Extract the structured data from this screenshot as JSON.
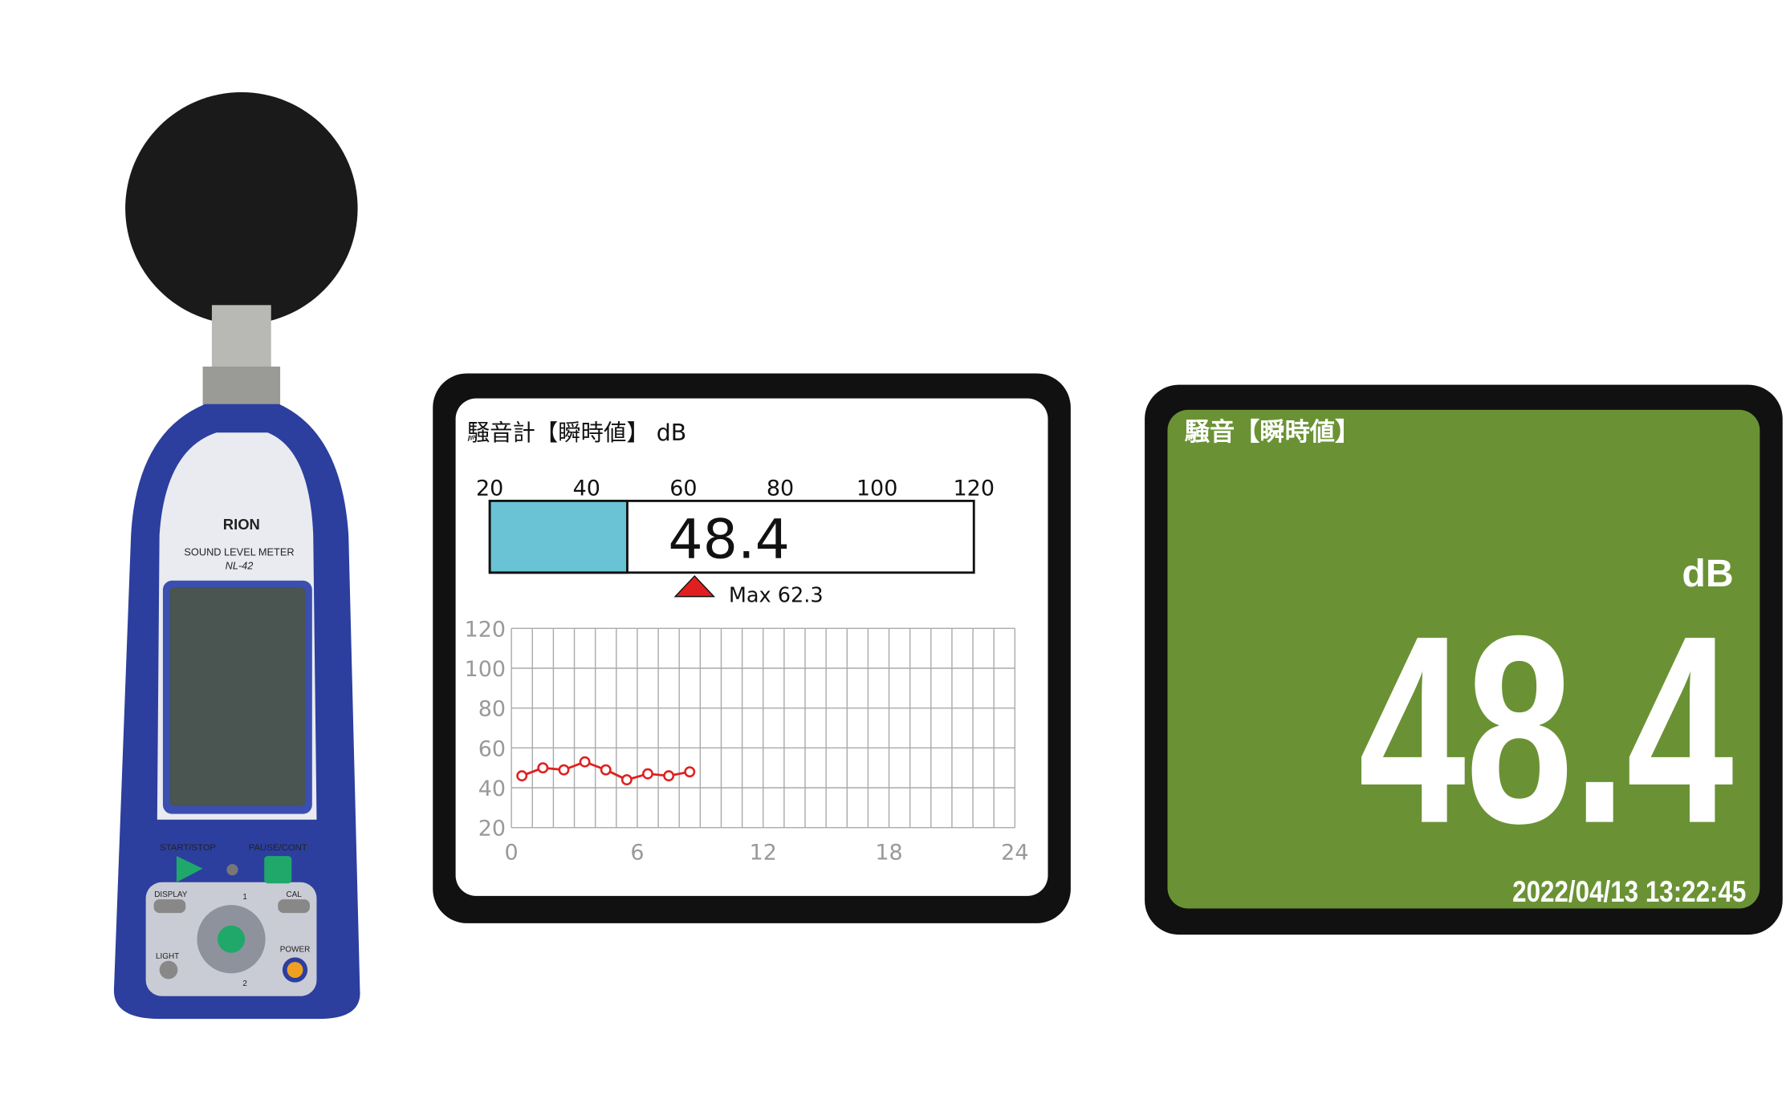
{
  "device": {
    "brand": "RION",
    "product": "SOUND LEVEL METER",
    "model": "NL-42",
    "buttons": {
      "start": "START/STOP",
      "pause": "PAUSE/CONT",
      "display": "DISPLAY",
      "cal": "CAL",
      "light": "LIGHT",
      "power": "POWER",
      "up": "1",
      "down": "2"
    }
  },
  "chart_data": [
    {
      "type": "gauge",
      "title": "騒音計【瞬時値】 dB",
      "xlim": [
        20,
        120
      ],
      "xticks": [
        20,
        40,
        60,
        80,
        100,
        120
      ],
      "values": [
        48.4
      ],
      "color": "#6ac3d5",
      "annotations": [
        {
          "text": "Max 62.3",
          "value": 62.3,
          "color": "#e02020"
        }
      ]
    },
    {
      "type": "line",
      "xlim": [
        0,
        24
      ],
      "xticks": [
        0,
        6,
        12,
        18,
        24
      ],
      "ylim": [
        20,
        120
      ],
      "yticks": [
        20,
        40,
        60,
        80,
        100,
        120
      ],
      "grid": true,
      "x_grid_step": 1,
      "series": [
        {
          "color": "#e02020",
          "x": [
            0.5,
            1.5,
            2.5,
            3.5,
            4.5,
            5.5,
            6.5,
            7.5,
            8.5
          ],
          "values": [
            46,
            50,
            49,
            53,
            49,
            44,
            47,
            46,
            48
          ]
        }
      ]
    }
  ],
  "display": {
    "title": "騒音【瞬時値】",
    "unit": "dB",
    "value": "48.4",
    "timestamp": "2022/04/13 13:22:45",
    "background": "#6a9234"
  }
}
